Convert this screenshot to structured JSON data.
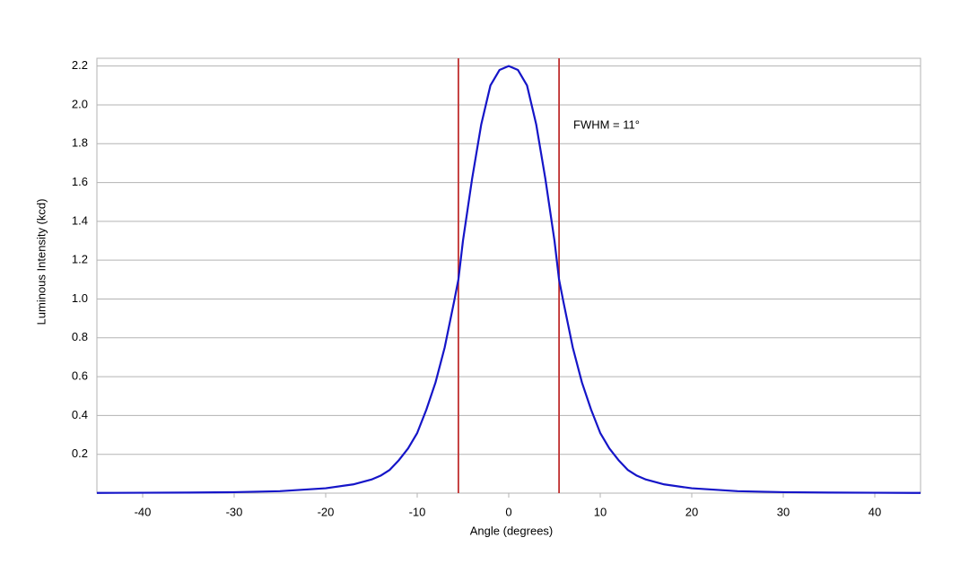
{
  "chart_data": {
    "type": "line",
    "xlabel": "Angle (degrees)",
    "ylabel": "Luminous Intensity (kcd)",
    "annotation": "FWHM = 11°",
    "x": [
      -45,
      -40,
      -35,
      -30,
      -25,
      -20,
      -17,
      -15,
      -14,
      -13,
      -12,
      -11,
      -10,
      -9,
      -8,
      -7,
      -6,
      -5.5,
      -5,
      -4,
      -3,
      -2,
      -1,
      0,
      1,
      2,
      3,
      4,
      5,
      5.5,
      6,
      7,
      8,
      9,
      10,
      11,
      12,
      13,
      14,
      15,
      17,
      20,
      25,
      30,
      35,
      40,
      45
    ],
    "series": [
      {
        "color": "#1515c8",
        "values": [
          0.001,
          0.002,
          0.003,
          0.005,
          0.01,
          0.025,
          0.045,
          0.07,
          0.09,
          0.12,
          0.17,
          0.23,
          0.31,
          0.43,
          0.57,
          0.75,
          0.98,
          1.1,
          1.3,
          1.62,
          1.9,
          2.1,
          2.18,
          2.2,
          2.18,
          2.1,
          1.9,
          1.62,
          1.3,
          1.1,
          0.98,
          0.75,
          0.57,
          0.43,
          0.31,
          0.23,
          0.17,
          0.12,
          0.09,
          0.07,
          0.045,
          0.025,
          0.01,
          0.005,
          0.003,
          0.002,
          0.001
        ]
      }
    ],
    "vlines": [
      -5.5,
      5.5
    ],
    "vline_color": "#c03030",
    "xlim": [
      -45,
      45
    ],
    "ylim": [
      0,
      2.24
    ],
    "xticks": [
      -40,
      -30,
      -20,
      -10,
      0,
      10,
      20,
      30,
      40
    ],
    "yticks": [
      0.2,
      0.4,
      0.6,
      0.8,
      {
        "value": 1,
        "label": "1.0"
      },
      1.2,
      1.4,
      1.6,
      1.8,
      {
        "value": 2,
        "label": "2.0"
      },
      2.2
    ],
    "grid": true
  }
}
